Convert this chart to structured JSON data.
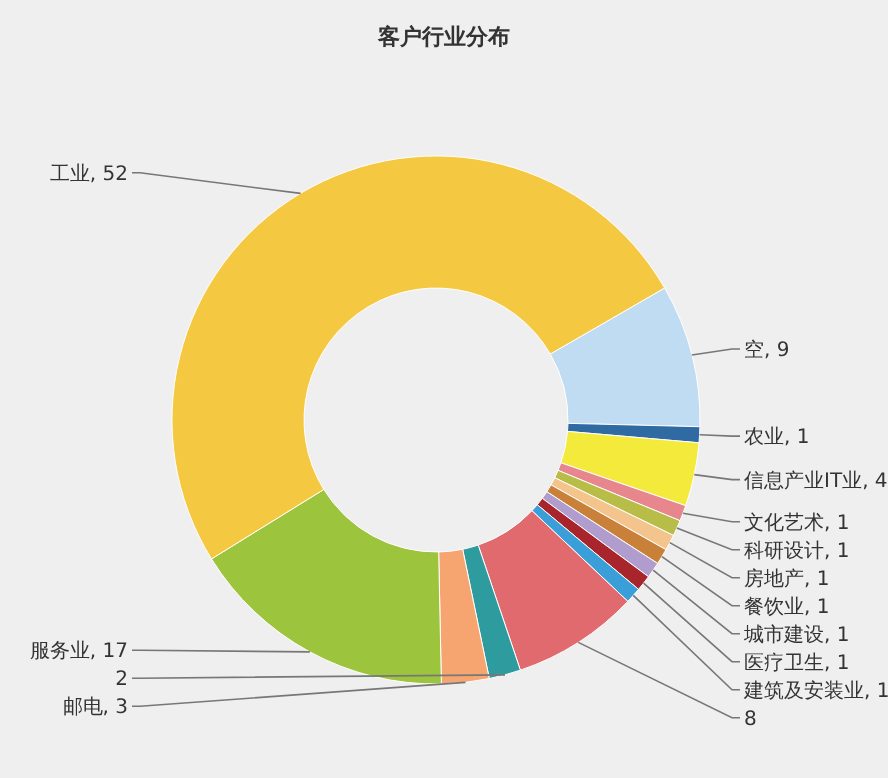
{
  "chart_data": {
    "type": "donut",
    "title": "客户行业分布",
    "categories": [
      "空",
      "农业",
      "信息产业IT业",
      "文化艺术",
      "科研设计",
      "房地产",
      "餐饮业",
      "城市建设",
      "医疗卫生",
      "建筑及安装业",
      null,
      null,
      "邮电",
      "服务业",
      "工业"
    ],
    "values": [
      9,
      1,
      4,
      1,
      1,
      1,
      1,
      1,
      1,
      1,
      8,
      2,
      3,
      17,
      52
    ],
    "colors": [
      "#bfdcf3",
      "#2f6aa3",
      "#f4ea3c",
      "#e8868e",
      "#b8bd48",
      "#f3c58c",
      "#c9813a",
      "#b09ccd",
      "#a8252b",
      "#3a9fd8",
      "#e06a6e",
      "#2e9c9e",
      "#f7a570",
      "#9cc43c",
      "#f5c842"
    ],
    "value_labels": [
      ", 9",
      ", 1",
      ", 4",
      ", 1",
      ", 1",
      ", 1",
      ", 1",
      ", 1",
      ", 1",
      ", 1",
      "8",
      "2",
      ", 3",
      ", 17",
      ", 52"
    ]
  }
}
